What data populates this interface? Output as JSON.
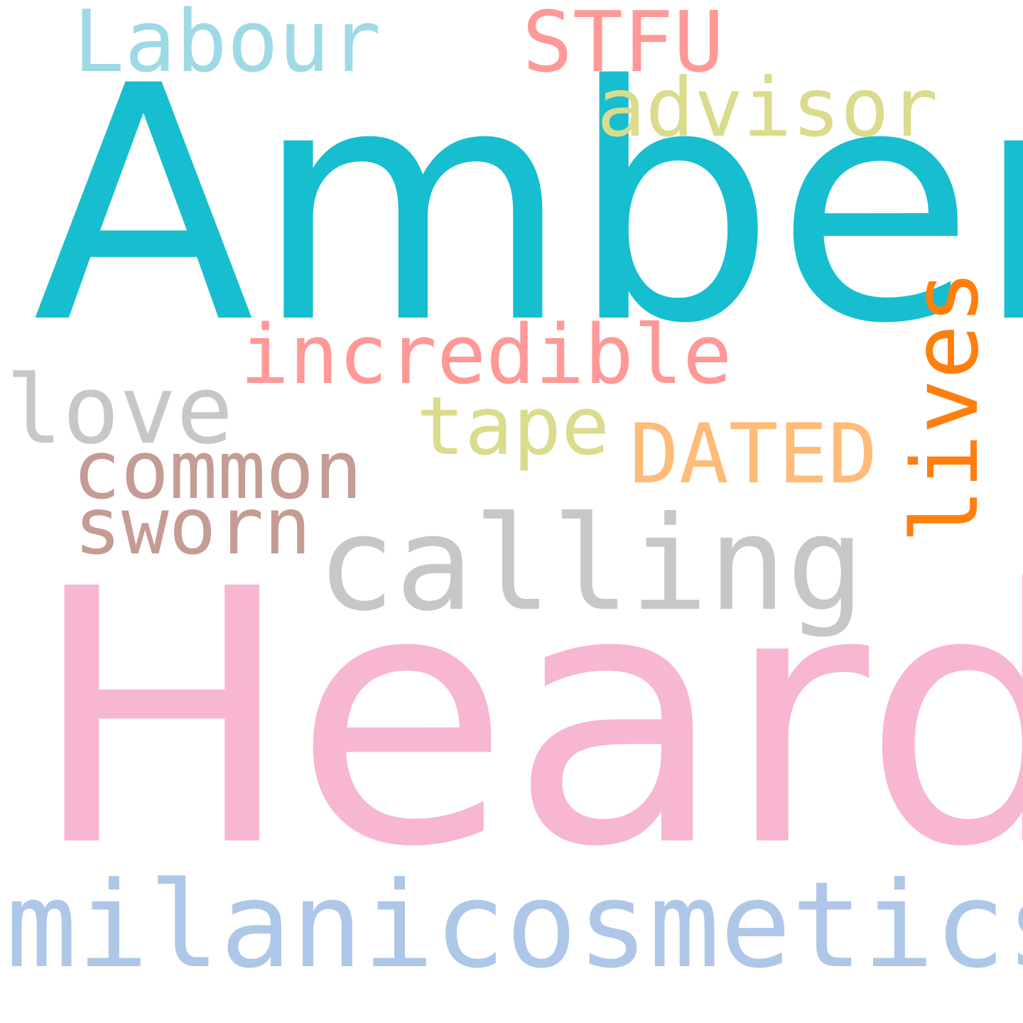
{
  "words": {
    "amber": {
      "text": "Amber",
      "color": "#17becf"
    },
    "heard": {
      "text": "Heard",
      "color": "#f7b6d2"
    },
    "milanicosmetics": {
      "text": "milanicosmetics",
      "color": "#aec7e8"
    },
    "calling": {
      "text": "calling",
      "color": "#c7c7c7"
    },
    "incredible": {
      "text": "incredible",
      "color": "#ff9896"
    },
    "labour": {
      "text": "Labour",
      "color": "#9edae5"
    },
    "stfu": {
      "text": "STFU",
      "color": "#ff9896"
    },
    "advisor": {
      "text": "advisor",
      "color": "#dbdb8d"
    },
    "love": {
      "text": "love",
      "color": "#c7c7c7"
    },
    "tape": {
      "text": "tape",
      "color": "#dbdb8d"
    },
    "dated": {
      "text": "DATED",
      "color": "#ffbb78"
    },
    "common": {
      "text": "common",
      "color": "#c49c94"
    },
    "sworn": {
      "text": "sworn",
      "color": "#c49c94"
    },
    "lives": {
      "text": "lives",
      "color": "#ff7f0e"
    }
  }
}
